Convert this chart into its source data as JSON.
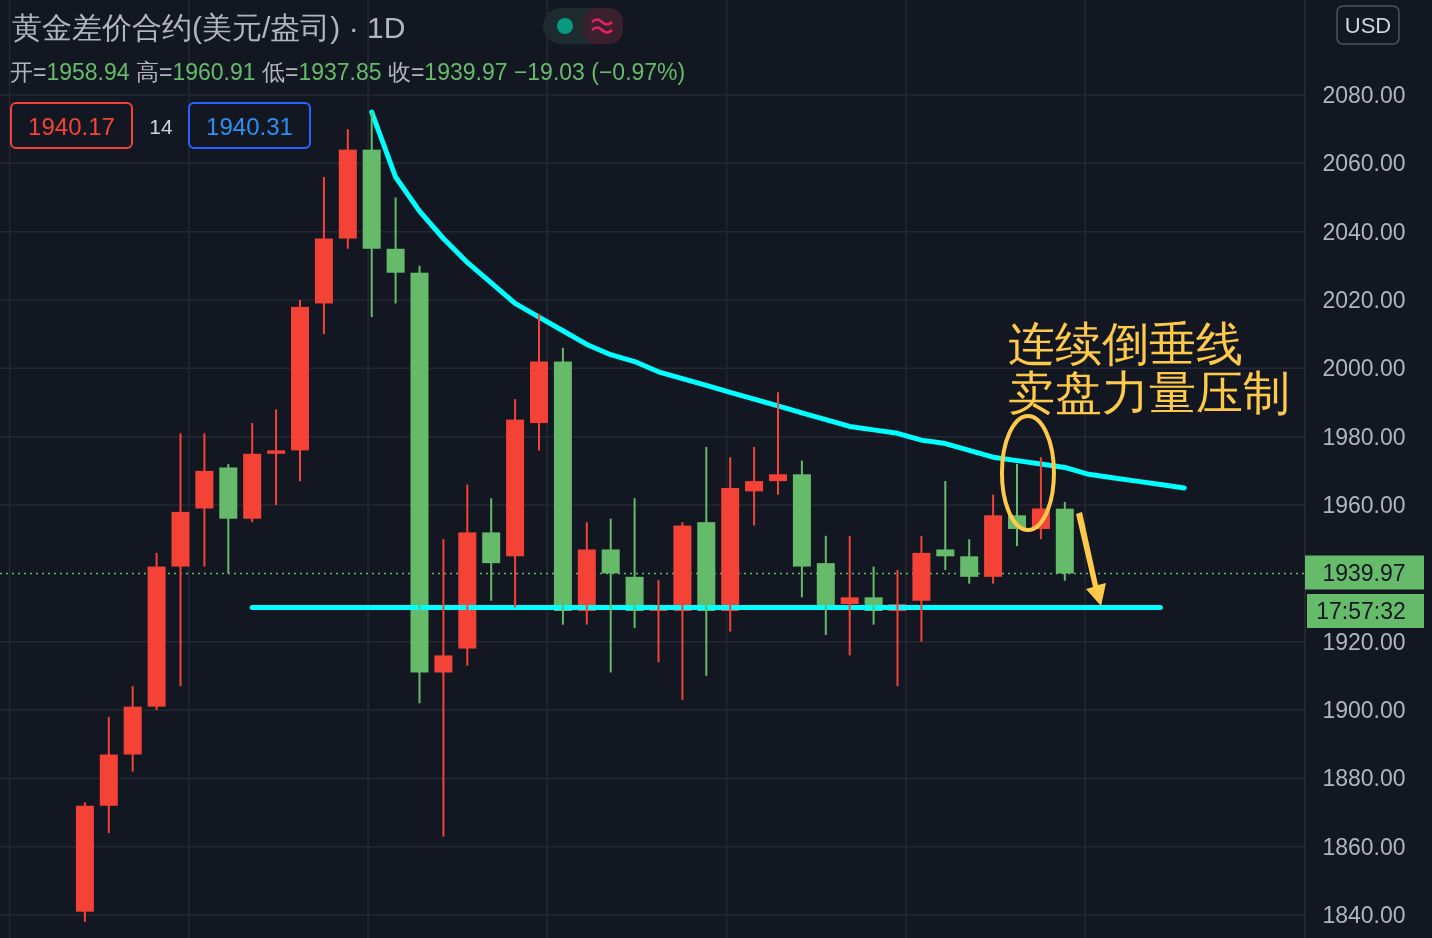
{
  "chart_data": {
    "type": "candlestick",
    "title": "黄金差价合约(美元/盎司) · 1D",
    "subtitle": "开=1958.94 高=1960.91 低=1937.85 收=1939.97 −19.03 (−0.97%)",
    "categories": [
      null,
      null,
      null,
      null,
      null,
      null,
      null,
      null,
      null,
      null,
      null,
      null,
      null,
      null,
      null,
      null,
      null,
      null,
      null,
      null,
      null,
      null,
      null,
      null,
      null,
      null,
      null,
      null,
      null,
      null,
      null,
      null,
      null,
      null,
      null,
      null,
      null,
      null,
      null,
      null,
      null,
      null,
      null,
      null,
      null,
      null,
      null,
      null,
      null,
      null,
      null,
      null
    ],
    "ohlc": [
      [
        1841,
        1873,
        1838,
        1872
      ],
      [
        1872,
        1898,
        1864,
        1887
      ],
      [
        1887,
        1907,
        1882,
        1901
      ],
      [
        1901,
        1946,
        1900,
        1942
      ],
      [
        1942,
        1981,
        1907,
        1958
      ],
      [
        1959,
        1981,
        1942,
        1970
      ],
      [
        1971,
        1972,
        1940,
        1956
      ],
      [
        1956,
        1984,
        1955,
        1975
      ],
      [
        1975,
        1988,
        1960,
        1976
      ],
      [
        1976,
        2020,
        1967,
        2018
      ],
      [
        2019,
        2056,
        2010,
        2038
      ],
      [
        2038,
        2070,
        2035,
        2064
      ],
      [
        2064,
        2075,
        2015,
        2035
      ],
      [
        2035,
        2050,
        2019,
        2028
      ],
      [
        2028,
        2030,
        1902,
        1911
      ],
      [
        1911,
        1950,
        1863,
        1916
      ],
      [
        1918,
        1966,
        1913,
        1952
      ],
      [
        1952,
        1962,
        1932,
        1943
      ],
      [
        1945,
        1991,
        1930,
        1985
      ],
      [
        1984,
        2016,
        1976,
        2002
      ],
      [
        2002,
        2006,
        1925,
        1929
      ],
      [
        1929,
        1955,
        1925,
        1947
      ],
      [
        1947,
        1956,
        1911,
        1940
      ],
      [
        1939,
        1962,
        1924,
        1929
      ],
      [
        1929,
        1938,
        1914,
        1930
      ],
      [
        1929,
        1955,
        1903,
        1954
      ],
      [
        1955,
        1977,
        1910,
        1929
      ],
      [
        1929,
        1974,
        1923,
        1965
      ],
      [
        1964,
        1977,
        1954,
        1967
      ],
      [
        1967,
        1993,
        1963,
        1969
      ],
      [
        1969,
        1973,
        1933,
        1942
      ],
      [
        1943,
        1951,
        1922,
        1930
      ],
      [
        1931,
        1951,
        1916,
        1933
      ],
      [
        1933,
        1942,
        1925,
        1929
      ],
      [
        1929,
        1941,
        1907,
        1931
      ],
      [
        1932,
        1951,
        1920,
        1946
      ],
      [
        1947,
        1967,
        1941,
        1945
      ],
      [
        1945,
        1950,
        1937,
        1939
      ],
      [
        1939,
        1963,
        1937,
        1957
      ],
      [
        1957,
        1972,
        1948,
        1953
      ],
      [
        1953,
        1974,
        1950,
        1959
      ],
      [
        1958.94,
        1960.91,
        1937.85,
        1939.97
      ],
      null,
      null,
      null,
      null,
      null,
      null,
      null,
      null,
      null,
      null
    ],
    "colors": [
      "#f44336",
      "#f44336",
      "#f44336",
      "#f44336",
      "#f44336",
      "#f44336",
      "#66bb6a",
      "#f44336",
      "#f44336",
      "#f44336",
      "#f44336",
      "#f44336",
      "#66bb6a",
      "#66bb6a",
      "#66bb6a",
      "#f44336",
      "#f44336",
      "#66bb6a",
      "#f44336",
      "#f44336",
      "#66bb6a",
      "#f44336",
      "#66bb6a",
      "#66bb6a",
      "#f44336",
      "#f44336",
      "#66bb6a",
      "#f44336",
      "#f44336",
      "#f44336",
      "#66bb6a",
      "#66bb6a",
      "#f44336",
      "#66bb6a",
      "#f44336",
      "#f44336",
      "#66bb6a",
      "#66bb6a",
      "#f44336",
      "#66bb6a",
      "#f44336",
      "#66bb6a",
      null,
      null,
      null,
      null,
      null,
      null,
      null,
      null,
      null,
      null
    ],
    "series": [
      {
        "type": "line",
        "color": "#00ffff",
        "values": [
          null,
          null,
          null,
          null,
          null,
          null,
          null,
          null,
          null,
          null,
          null,
          null,
          2075,
          2056,
          2046,
          2038,
          2031,
          2025,
          2019,
          2015,
          2011,
          2007,
          2004,
          2002,
          1999,
          1997,
          1995,
          1993,
          1991,
          1989,
          1987,
          1985,
          1983,
          1982,
          1981,
          1979,
          1978,
          1976,
          1974,
          1973,
          1972,
          1971,
          1969,
          1968,
          1967,
          1966,
          1965,
          null,
          null,
          null,
          null,
          null
        ]
      },
      {
        "type": "line",
        "color": "#00ffff",
        "values": [
          null,
          null,
          null,
          null,
          null,
          null,
          null,
          1930,
          1930,
          1930,
          1930,
          1930,
          1930,
          1930,
          1930,
          1930,
          1930,
          1930,
          1930,
          1930,
          1930,
          1930,
          1930,
          1930,
          1930,
          1930,
          1930,
          1930,
          1930,
          1930,
          1930,
          1930,
          1930,
          1930,
          1930,
          1930,
          1930,
          1930,
          1930,
          1930,
          1930,
          1930,
          1930,
          1930,
          1930,
          1930,
          null,
          null,
          null,
          null,
          null,
          null
        ]
      }
    ],
    "ylim": [
      1833.3,
      2107.8
    ],
    "yticks": [
      {
        "value": 1840,
        "label": "1840.00"
      },
      {
        "value": 1860,
        "label": "1860.00"
      },
      {
        "value": 1880,
        "label": "1880.00"
      },
      {
        "value": 1900,
        "label": "1900.00"
      },
      {
        "value": 1920,
        "label": "1920.00"
      },
      {
        "value": 1960,
        "label": "1960.00"
      },
      {
        "value": 1980,
        "label": "1980.00"
      },
      {
        "value": 2000,
        "label": "2000.00"
      },
      {
        "value": 2020,
        "label": "2020.00"
      },
      {
        "value": 2040,
        "label": "2040.00"
      },
      {
        "value": 2060,
        "label": "2060.00"
      },
      {
        "value": 2080,
        "label": "2080.00"
      }
    ],
    "ref_lines": [
      {
        "axis": "y",
        "value": 1939.97,
        "label": "1939.97",
        "color": "#66bb6a",
        "line_style": "dotted"
      }
    ],
    "annotations": [
      "连续倒垂线",
      "卖盘力量压制",
      "1940.17",
      "14",
      "1940.31",
      "USD",
      "17:57:32"
    ],
    "grid": true,
    "tick_labels": "y"
  }
}
